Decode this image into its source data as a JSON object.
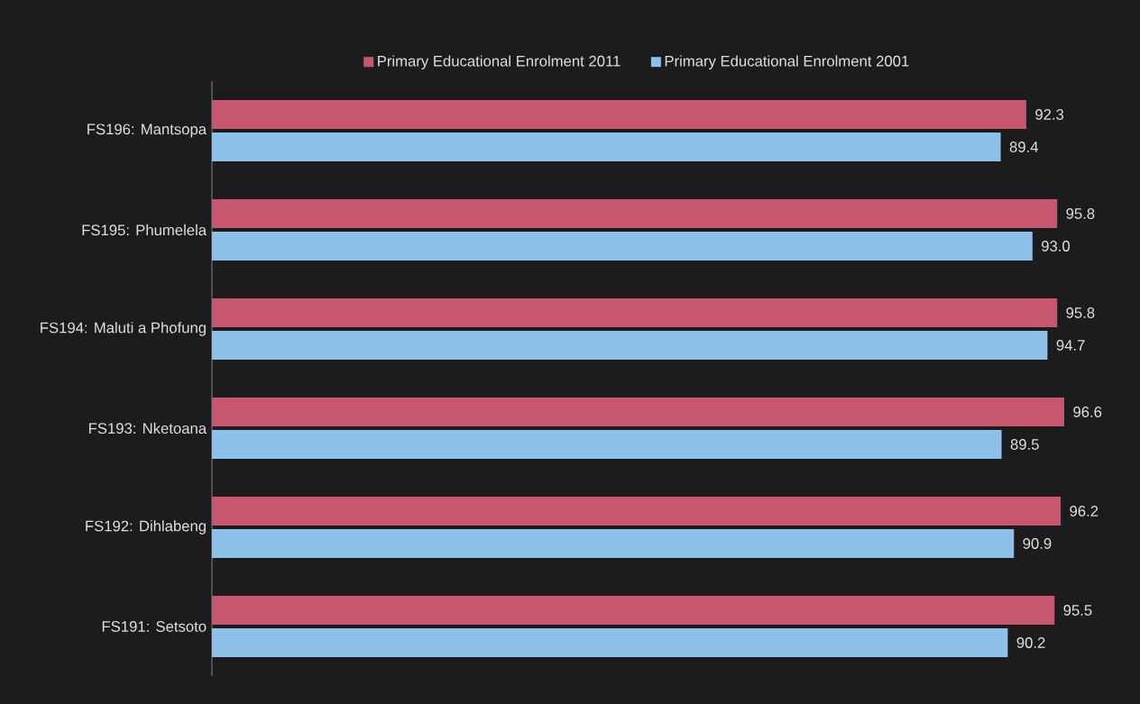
{
  "chart_data": {
    "type": "bar",
    "orientation": "horizontal",
    "categories": [
      "FS196: Mantsopa",
      "FS195: Phumelela",
      "FS194: Maluti a Phofung",
      "FS193: Nketoana",
      "FS192: Dihlabeng",
      "FS191: Setsoto"
    ],
    "series": [
      {
        "name": "Primary Educational Enrolment 2011",
        "color": "#c8566f",
        "values": [
          92.3,
          95.8,
          95.8,
          96.6,
          96.2,
          95.5
        ],
        "value_labels": [
          "92.3",
          "95.8",
          "95.8",
          "96.6",
          "96.2",
          "95.5"
        ]
      },
      {
        "name": "Primary Educational Enrolment 2001",
        "color": "#8ec1ea",
        "values": [
          89.4,
          93.0,
          94.7,
          89.5,
          90.9,
          90.2
        ],
        "value_labels": [
          "89.4",
          "93.0",
          "94.7",
          "89.5",
          "90.9",
          "90.2"
        ]
      }
    ],
    "legend": "top",
    "tick_labels": "y"
  }
}
